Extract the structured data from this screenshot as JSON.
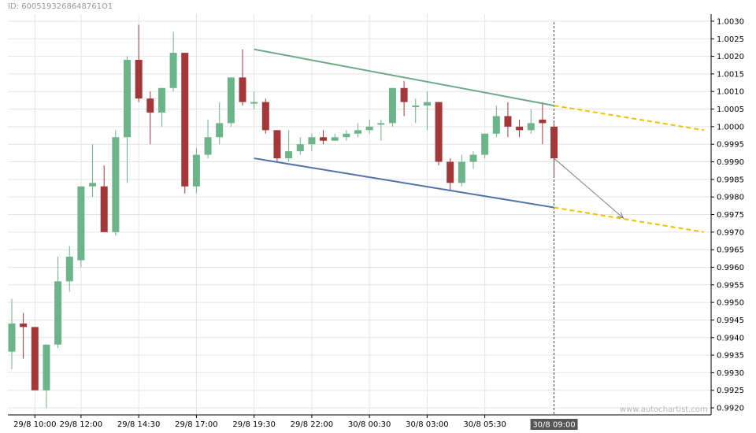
{
  "header": {
    "id_text": "ID: 6005193268648761O1"
  },
  "watermark": "www.autochartist.com",
  "colors": {
    "bull": "#6cb48a",
    "bear": "#a3373a",
    "upper_line": "#6daa86",
    "lower_line": "#4f72a8",
    "projection": "#f2c200",
    "arrow": "#808080",
    "grid": "#e4e4e4"
  },
  "chart_data": {
    "type": "candlestick",
    "title": "",
    "ylim": [
      0.9918,
      1.0032
    ],
    "y_ticks": [
      "1.0030",
      "1.0025",
      "1.0020",
      "1.0015",
      "1.0010",
      "1.0005",
      "1.0000",
      "0.9995",
      "0.9990",
      "0.9985",
      "0.9980",
      "0.9975",
      "0.9970",
      "0.9965",
      "0.9960",
      "0.9955",
      "0.9950",
      "0.9945",
      "0.9940",
      "0.9935",
      "0.9930",
      "0.9925",
      "0.9920"
    ],
    "x_ticks": [
      {
        "label": "29/8 10:00",
        "index": 2
      },
      {
        "label": "29/8 12:00",
        "index": 6
      },
      {
        "label": "29/8 14:30",
        "index": 11
      },
      {
        "label": "29/8 17:00",
        "index": 16
      },
      {
        "label": "29/8 19:30",
        "index": 21
      },
      {
        "label": "29/8 22:00",
        "index": 26
      },
      {
        "label": "30/8 00:30",
        "index": 31
      },
      {
        "label": "30/8 03:00",
        "index": 36
      },
      {
        "label": "30/8 05:30",
        "index": 41
      }
    ],
    "current_time_label": "30/8 09:00",
    "current_index": 47,
    "candles": [
      {
        "o": 0.9936,
        "h": 0.9951,
        "l": 0.9931,
        "c": 0.9944
      },
      {
        "o": 0.9944,
        "h": 0.9947,
        "l": 0.9934,
        "c": 0.9943
      },
      {
        "o": 0.9943,
        "h": 0.9943,
        "l": 0.9925,
        "c": 0.9925
      },
      {
        "o": 0.9925,
        "h": 0.9938,
        "l": 0.992,
        "c": 0.9938
      },
      {
        "o": 0.9938,
        "h": 0.9963,
        "l": 0.9937,
        "c": 0.9956
      },
      {
        "o": 0.9956,
        "h": 0.9966,
        "l": 0.9953,
        "c": 0.9963
      },
      {
        "o": 0.9962,
        "h": 0.9983,
        "l": 0.996,
        "c": 0.9983
      },
      {
        "o": 0.9983,
        "h": 0.9995,
        "l": 0.998,
        "c": 0.9984
      },
      {
        "o": 0.9983,
        "h": 0.9989,
        "l": 0.997,
        "c": 0.997
      },
      {
        "o": 0.997,
        "h": 0.9999,
        "l": 0.9969,
        "c": 0.9997
      },
      {
        "o": 0.9997,
        "h": 1.002,
        "l": 0.9984,
        "c": 1.0019
      },
      {
        "o": 1.0019,
        "h": 1.0029,
        "l": 1.0007,
        "c": 1.0008
      },
      {
        "o": 1.0008,
        "h": 1.001,
        "l": 0.9995,
        "c": 1.0004
      },
      {
        "o": 1.0004,
        "h": 1.0011,
        "l": 1.0,
        "c": 1.0011
      },
      {
        "o": 1.0011,
        "h": 1.0027,
        "l": 1.001,
        "c": 1.0021
      },
      {
        "o": 1.0021,
        "h": 1.0021,
        "l": 0.9981,
        "c": 0.9983
      },
      {
        "o": 0.9983,
        "h": 0.9994,
        "l": 0.9981,
        "c": 0.9992
      },
      {
        "o": 0.9992,
        "h": 1.0002,
        "l": 0.9991,
        "c": 0.9997
      },
      {
        "o": 0.9997,
        "h": 1.0007,
        "l": 0.9995,
        "c": 1.0001
      },
      {
        "o": 1.0001,
        "h": 1.0014,
        "l": 1.0,
        "c": 1.0014
      },
      {
        "o": 1.0014,
        "h": 1.0022,
        "l": 1.0006,
        "c": 1.0007
      },
      {
        "o": 1.0007,
        "h": 1.001,
        "l": 1.0005,
        "c": 1.0007
      },
      {
        "o": 1.0007,
        "h": 1.0008,
        "l": 0.9998,
        "c": 0.9999
      },
      {
        "o": 0.9999,
        "h": 0.9999,
        "l": 0.999,
        "c": 0.9991
      },
      {
        "o": 0.9991,
        "h": 0.9999,
        "l": 0.999,
        "c": 0.9993
      },
      {
        "o": 0.9993,
        "h": 0.9997,
        "l": 0.9992,
        "c": 0.9995
      },
      {
        "o": 0.9995,
        "h": 0.9998,
        "l": 0.9993,
        "c": 0.9997
      },
      {
        "o": 0.9997,
        "h": 0.9999,
        "l": 0.9995,
        "c": 0.9996
      },
      {
        "o": 0.9996,
        "h": 0.9998,
        "l": 0.9996,
        "c": 0.9997
      },
      {
        "o": 0.9997,
        "h": 0.9999,
        "l": 0.9996,
        "c": 0.9998
      },
      {
        "o": 0.9998,
        "h": 1.0001,
        "l": 0.9997,
        "c": 0.9999
      },
      {
        "o": 0.9999,
        "h": 1.0002,
        "l": 0.9998,
        "c": 1.0
      },
      {
        "o": 1.0001,
        "h": 1.0002,
        "l": 0.9996,
        "c": 1.0001
      },
      {
        "o": 1.0001,
        "h": 1.0011,
        "l": 1.0,
        "c": 1.0011
      },
      {
        "o": 1.0011,
        "h": 1.0013,
        "l": 1.0003,
        "c": 1.0007
      },
      {
        "o": 1.0006,
        "h": 1.0008,
        "l": 1.0001,
        "c": 1.0006
      },
      {
        "o": 1.0006,
        "h": 1.001,
        "l": 0.9999,
        "c": 1.0007
      },
      {
        "o": 1.0007,
        "h": 1.0007,
        "l": 0.9989,
        "c": 0.999
      },
      {
        "o": 0.999,
        "h": 0.9991,
        "l": 0.9982,
        "c": 0.9984
      },
      {
        "o": 0.9984,
        "h": 0.9992,
        "l": 0.9983,
        "c": 0.999
      },
      {
        "o": 0.999,
        "h": 0.9993,
        "l": 0.9988,
        "c": 0.9992
      },
      {
        "o": 0.9992,
        "h": 0.9998,
        "l": 0.9991,
        "c": 0.9998
      },
      {
        "o": 0.9998,
        "h": 1.0006,
        "l": 0.9997,
        "c": 1.0003
      },
      {
        "o": 1.0003,
        "h": 1.0007,
        "l": 0.9997,
        "c": 1.0
      },
      {
        "o": 1.0,
        "h": 1.0002,
        "l": 0.9997,
        "c": 0.9999
      },
      {
        "o": 0.9999,
        "h": 1.0005,
        "l": 0.9998,
        "c": 1.0001
      },
      {
        "o": 1.0002,
        "h": 1.0007,
        "l": 0.9995,
        "c": 1.0001
      },
      {
        "o": 1.0,
        "h": 1.0001,
        "l": 0.9986,
        "c": 0.9991
      }
    ],
    "pattern": {
      "upper": {
        "start": {
          "index": 21,
          "value": 1.0022
        },
        "end": {
          "index": 47,
          "value": 1.0006
        }
      },
      "lower": {
        "start": {
          "index": 21,
          "value": 0.9991
        },
        "end": {
          "index": 47,
          "value": 0.9977
        }
      },
      "projection_upper_end": {
        "index": 60,
        "value": 0.9999
      },
      "projection_lower_end": {
        "index": 60,
        "value": 0.997
      },
      "forecast_arrow": {
        "from": {
          "index": 47,
          "value": 0.9991
        },
        "to": {
          "index": 53,
          "value": 0.9974
        }
      }
    }
  }
}
